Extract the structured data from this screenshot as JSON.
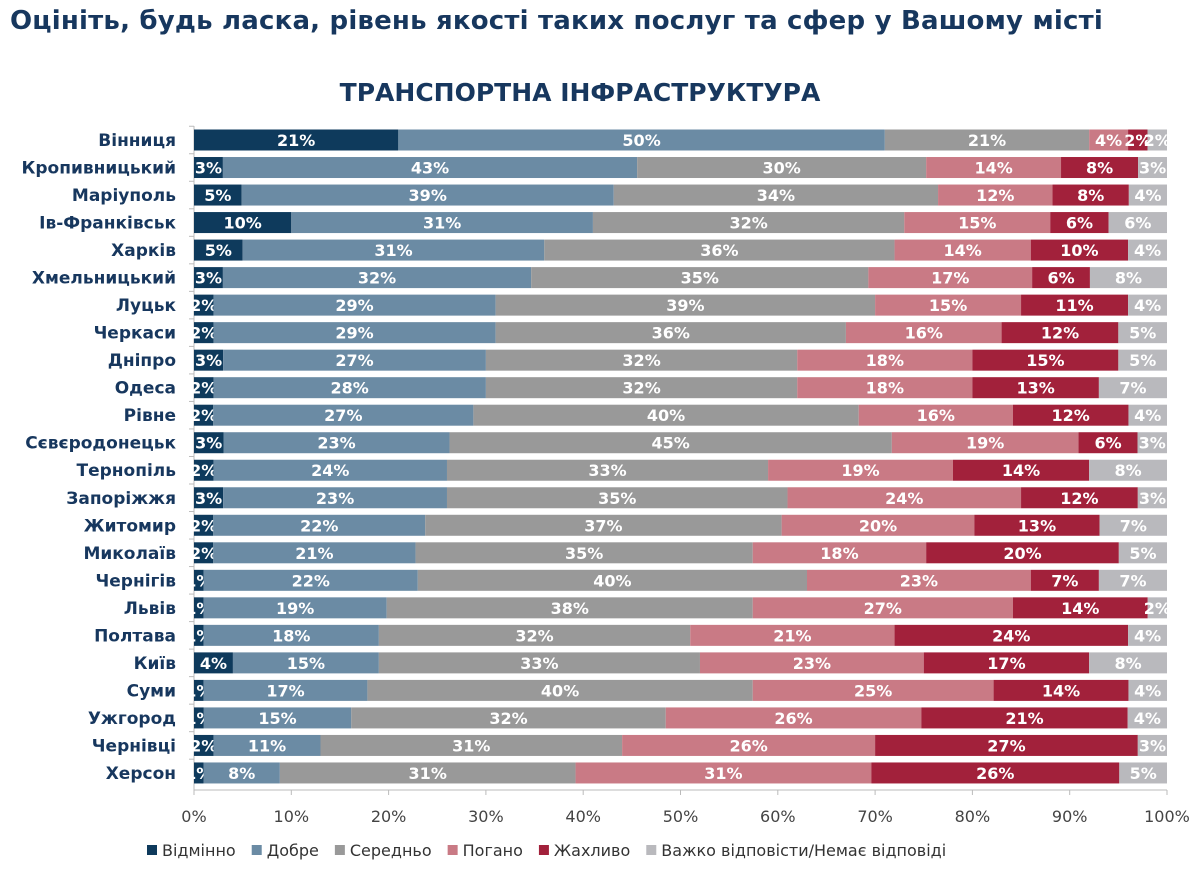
{
  "page_title": "Оцініть, будь ласка, рівень якості таких послуг та сфер у Вашому місті",
  "chart_data": {
    "type": "bar",
    "orientation": "horizontal",
    "stacked": true,
    "title": "ТРАНСПОРТНА ІНФРАСТРУКТУРА",
    "xlim": [
      0,
      100
    ],
    "x_ticks": [
      "0%",
      "10%",
      "20%",
      "30%",
      "40%",
      "50%",
      "60%",
      "70%",
      "80%",
      "90%",
      "100%"
    ],
    "legend_position": "bottom",
    "grid": false,
    "categories": [
      "Вінниця",
      "Кропивницький",
      "Маріуполь",
      "Ів-Франківськ",
      "Харків",
      "Хмельницький",
      "Луцьк",
      "Черкаси",
      "Дніпро",
      "Одеса",
      "Рівне",
      "Сєвєродонецьк",
      "Тернопіль",
      "Запоріжжя",
      "Житомир",
      "Миколаїв",
      "Чернігів",
      "Львів",
      "Полтава",
      "Київ",
      "Суми",
      "Ужгород",
      "Чернівці",
      "Херсон"
    ],
    "series": [
      {
        "name": "Відмінно",
        "color": "#0e3a5c",
        "values": [
          21,
          3,
          5,
          10,
          5,
          3,
          2,
          2,
          3,
          2,
          2,
          3,
          2,
          3,
          2,
          2,
          1,
          1,
          1,
          4,
          1,
          1,
          2,
          1
        ]
      },
      {
        "name": "Добре",
        "color": "#6b8ba4",
        "values": [
          50,
          43,
          39,
          31,
          31,
          32,
          29,
          29,
          27,
          28,
          27,
          23,
          24,
          23,
          22,
          21,
          22,
          19,
          18,
          15,
          17,
          15,
          11,
          8
        ]
      },
      {
        "name": "Середньо",
        "color": "#999999",
        "values": [
          21,
          30,
          34,
          32,
          36,
          35,
          39,
          36,
          32,
          32,
          40,
          45,
          33,
          35,
          37,
          35,
          40,
          38,
          32,
          33,
          40,
          32,
          31,
          31
        ]
      },
      {
        "name": "Погано",
        "color": "#c97a85",
        "values": [
          4,
          14,
          12,
          15,
          14,
          17,
          15,
          16,
          18,
          18,
          16,
          19,
          19,
          24,
          20,
          18,
          23,
          27,
          21,
          23,
          25,
          26,
          26,
          31
        ]
      },
      {
        "name": "Жахливо",
        "color": "#a2213b",
        "values": [
          2,
          8,
          8,
          6,
          10,
          6,
          11,
          12,
          15,
          13,
          12,
          6,
          14,
          12,
          13,
          20,
          7,
          14,
          24,
          17,
          14,
          21,
          27,
          26
        ]
      },
      {
        "name": "Важко відповісти/Немає відповіді",
        "color": "#b9b9bd",
        "values": [
          2,
          3,
          4,
          6,
          4,
          8,
          4,
          5,
          5,
          7,
          4,
          3,
          8,
          3,
          7,
          5,
          7,
          2,
          4,
          8,
          4,
          4,
          3,
          5
        ]
      }
    ]
  }
}
